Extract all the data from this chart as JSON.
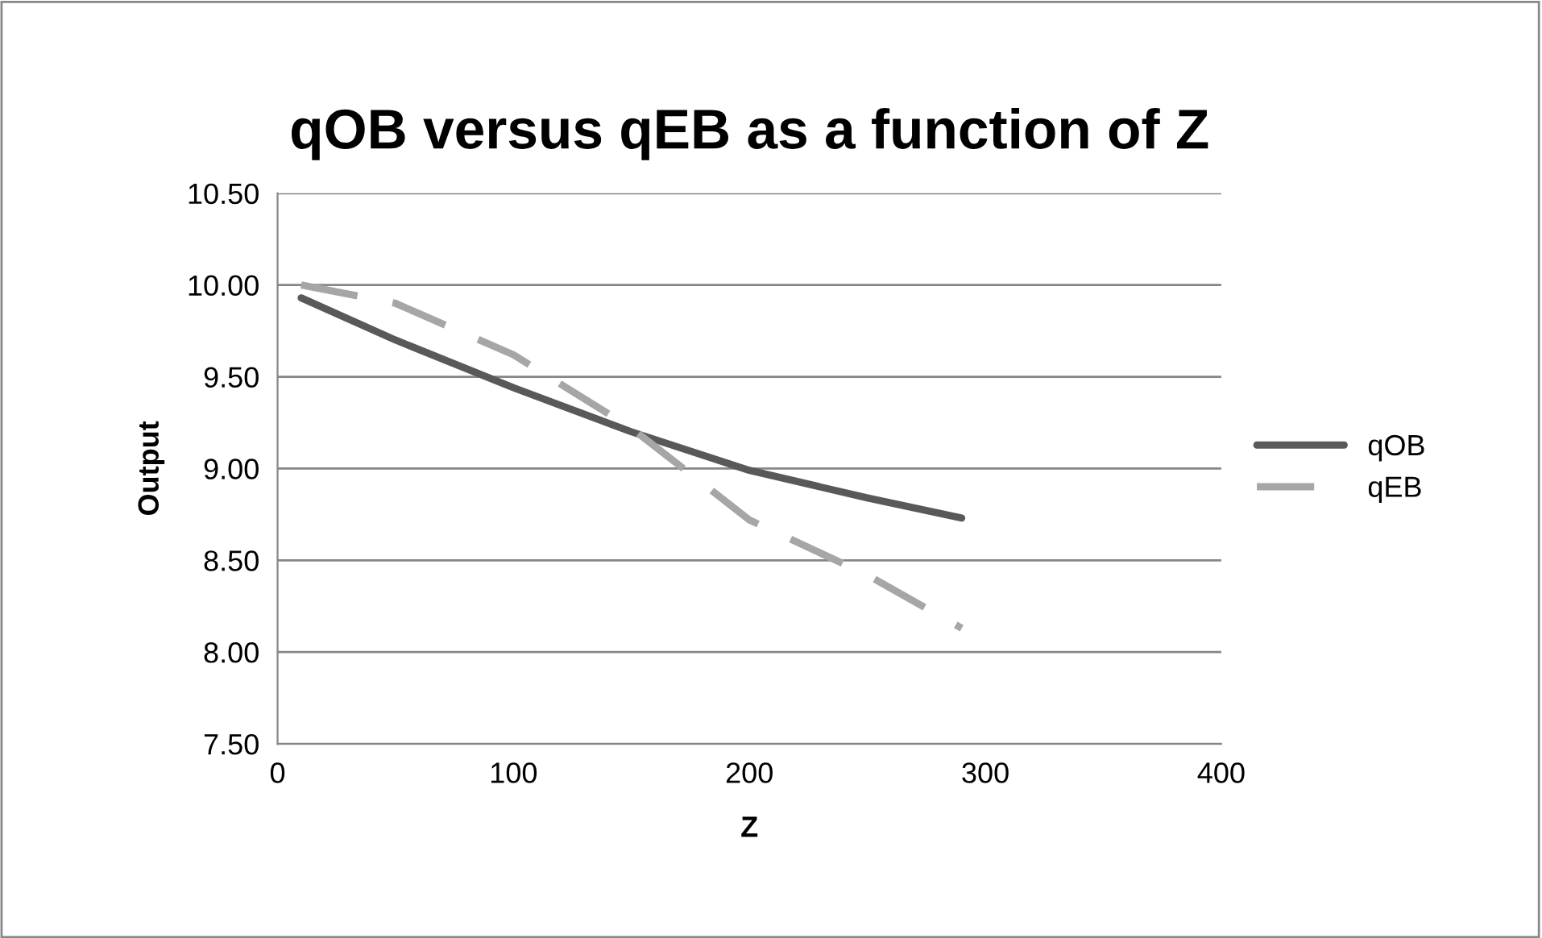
{
  "chart_data": {
    "type": "line",
    "title": "qOB versus qEB as a function of Z",
    "xlabel": "Z",
    "ylabel": "Output",
    "x": [
      10,
      50,
      100,
      150,
      200,
      250,
      290
    ],
    "series": [
      {
        "name": "qOB",
        "color": "#595959",
        "line_style": "solid",
        "values": [
          9.93,
          9.7,
          9.44,
          9.2,
          8.99,
          8.84,
          8.73
        ]
      },
      {
        "name": "qEB",
        "color": "#a6a6a6",
        "line_style": "dashed",
        "values": [
          10.0,
          9.9,
          9.62,
          9.22,
          8.72,
          8.42,
          8.13
        ]
      }
    ],
    "xlim": [
      0,
      400
    ],
    "xticks": [
      0,
      100,
      200,
      300,
      400
    ],
    "ylim": [
      7.5,
      10.5
    ],
    "yticks": [
      {
        "value": 7.5,
        "label": "7.50"
      },
      {
        "value": 8.0,
        "label": "8.00"
      },
      {
        "value": 8.5,
        "label": "8.50"
      },
      {
        "value": 9.0,
        "label": "9.00"
      },
      {
        "value": 9.5,
        "label": "9.50"
      },
      {
        "value": 10.0,
        "label": "10.00"
      },
      {
        "value": 10.5,
        "label": "10.50"
      }
    ],
    "grid": "y",
    "legend": "right",
    "marker": "none"
  }
}
